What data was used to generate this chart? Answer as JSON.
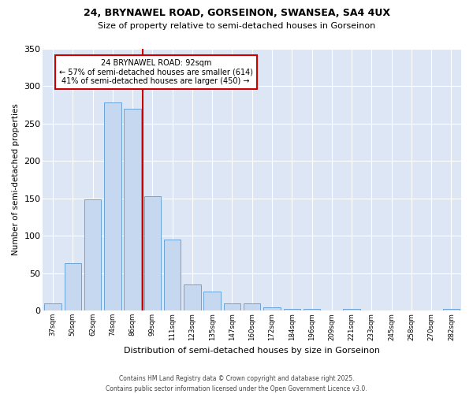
{
  "title1": "24, BRYNAWEL ROAD, GORSEINON, SWANSEA, SA4 4UX",
  "title2": "Size of property relative to semi-detached houses in Gorseinon",
  "xlabel": "Distribution of semi-detached houses by size in Gorseinon",
  "ylabel": "Number of semi-detached properties",
  "categories": [
    "37sqm",
    "50sqm",
    "62sqm",
    "74sqm",
    "86sqm",
    "99sqm",
    "111sqm",
    "123sqm",
    "135sqm",
    "147sqm",
    "160sqm",
    "172sqm",
    "184sqm",
    "196sqm",
    "209sqm",
    "221sqm",
    "233sqm",
    "245sqm",
    "258sqm",
    "270sqm",
    "282sqm"
  ],
  "values": [
    10,
    63,
    148,
    278,
    270,
    153,
    95,
    35,
    25,
    9,
    9,
    4,
    2,
    2,
    0,
    2,
    0,
    0,
    0,
    0,
    2
  ],
  "bar_color": "#c5d8f0",
  "bar_edge_color": "#5b9bd5",
  "vline_x": 4.5,
  "vline_color": "#cc0000",
  "annotation_title": "24 BRYNAWEL ROAD: 92sqm",
  "annotation_line1": "← 57% of semi-detached houses are smaller (614)",
  "annotation_line2": "41% of semi-detached houses are larger (450) →",
  "annotation_box_facecolor": "white",
  "annotation_box_edgecolor": "#cc0000",
  "fig_bg_color": "#ffffff",
  "plot_bg_color": "#dce6f5",
  "grid_color": "#ffffff",
  "footer1": "Contains HM Land Registry data © Crown copyright and database right 2025.",
  "footer2": "Contains public sector information licensed under the Open Government Licence v3.0.",
  "ylim": [
    0,
    350
  ],
  "yticks": [
    0,
    50,
    100,
    150,
    200,
    250,
    300,
    350
  ]
}
